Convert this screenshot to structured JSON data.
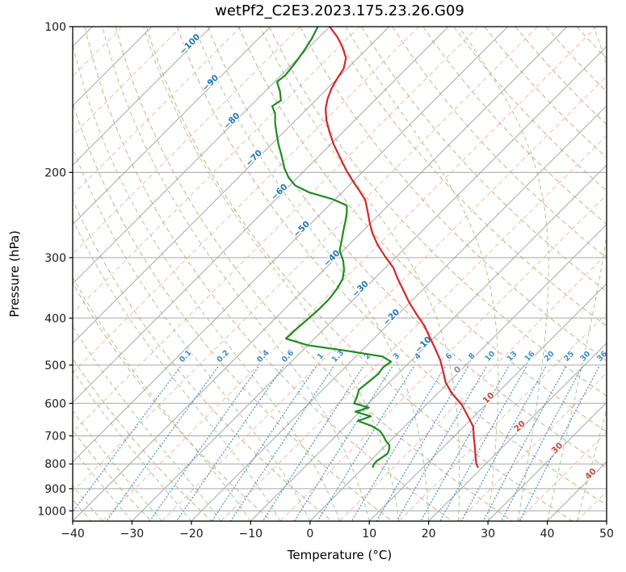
{
  "title": "wetPf2_C2E3.2023.175.23.26.G09",
  "x_axis": {
    "label": "Temperature (°C)",
    "tick_values": [
      -40,
      -30,
      -20,
      -10,
      0,
      10,
      20,
      30,
      40,
      50
    ],
    "tick_labels": [
      "−40",
      "−30",
      "−20",
      "−10",
      "0",
      "10",
      "20",
      "30",
      "40",
      "50"
    ]
  },
  "y_axis": {
    "label": "Pressure (hPa)",
    "tick_values": [
      100,
      200,
      300,
      400,
      500,
      600,
      700,
      800,
      900,
      1000
    ],
    "tick_labels": [
      "100",
      "200",
      "300",
      "400",
      "500",
      "600",
      "700",
      "800",
      "900",
      "1000"
    ]
  },
  "chart_data": {
    "type": "line",
    "diagram": "skew-t-log-p",
    "pressure_range_hPa": [
      100,
      1050
    ],
    "temperature_axis_range_C": [
      -40,
      50
    ],
    "grid": true,
    "series": [
      {
        "name": "temperature",
        "color": "#d62728",
        "points": [
          [
            100,
            -80
          ],
          [
            105,
            -77
          ],
          [
            110,
            -74.5
          ],
          [
            116,
            -72
          ],
          [
            122,
            -70.6
          ],
          [
            128,
            -70
          ],
          [
            134,
            -69.3
          ],
          [
            141,
            -68.2
          ],
          [
            148,
            -66.8
          ],
          [
            156,
            -64.8
          ],
          [
            165,
            -62.3
          ],
          [
            175,
            -59.5
          ],
          [
            186,
            -56.3
          ],
          [
            198,
            -53
          ],
          [
            208,
            -50.2
          ],
          [
            218,
            -47.4
          ],
          [
            228,
            -44.8
          ],
          [
            240,
            -42.6
          ],
          [
            253,
            -40.4
          ],
          [
            267,
            -38
          ],
          [
            282,
            -35.2
          ],
          [
            298,
            -32
          ],
          [
            315,
            -28.6
          ],
          [
            332,
            -26
          ],
          [
            350,
            -23.2
          ],
          [
            370,
            -20.3
          ],
          [
            392,
            -17
          ],
          [
            415,
            -13.6
          ],
          [
            438,
            -10.8
          ],
          [
            462,
            -8
          ],
          [
            488,
            -5.2
          ],
          [
            515,
            -2.8
          ],
          [
            543,
            -0.5
          ],
          [
            573,
            2.5
          ],
          [
            604,
            6
          ],
          [
            636,
            8.8
          ],
          [
            670,
            11.6
          ],
          [
            705,
            13.5
          ],
          [
            740,
            15.4
          ],
          [
            776,
            17.2
          ],
          [
            800,
            18.4
          ],
          [
            812,
            19.2
          ]
        ]
      },
      {
        "name": "dewpoint",
        "color": "#1e8b1e",
        "points": [
          [
            100,
            -82
          ],
          [
            106,
            -81
          ],
          [
            112,
            -80.3
          ],
          [
            119,
            -79.7
          ],
          [
            126,
            -79.3
          ],
          [
            130,
            -79.6
          ],
          [
            136,
            -77.5
          ],
          [
            142,
            -75.8
          ],
          [
            146,
            -76.3
          ],
          [
            151,
            -74.6
          ],
          [
            158,
            -73
          ],
          [
            166,
            -71
          ],
          [
            175,
            -68.8
          ],
          [
            185,
            -66.3
          ],
          [
            196,
            -63.8
          ],
          [
            205,
            -61.5
          ],
          [
            213,
            -59
          ],
          [
            220,
            -55.5
          ],
          [
            227,
            -50.5
          ],
          [
            234,
            -47
          ],
          [
            242,
            -45.8
          ],
          [
            252,
            -44.6
          ],
          [
            263,
            -43.4
          ],
          [
            276,
            -42
          ],
          [
            290,
            -40.6
          ],
          [
            305,
            -38.2
          ],
          [
            318,
            -36.6
          ],
          [
            332,
            -35.3
          ],
          [
            348,
            -34.6
          ],
          [
            365,
            -34.2
          ],
          [
            383,
            -34.2
          ],
          [
            402,
            -34.4
          ],
          [
            422,
            -34.7
          ],
          [
            441,
            -34.8
          ],
          [
            455,
            -30
          ],
          [
            468,
            -22
          ],
          [
            480,
            -15.5
          ],
          [
            492,
            -13.2
          ],
          [
            505,
            -13.6
          ],
          [
            522,
            -13.3
          ],
          [
            542,
            -13.6
          ],
          [
            562,
            -13.9
          ],
          [
            582,
            -13
          ],
          [
            600,
            -12.4
          ],
          [
            612,
            -9.2
          ],
          [
            624,
            -10.8
          ],
          [
            638,
            -7.4
          ],
          [
            652,
            -8.8
          ],
          [
            668,
            -5.6
          ],
          [
            684,
            -3.4
          ],
          [
            700,
            -2
          ],
          [
            716,
            -0.8
          ],
          [
            732,
            0.6
          ],
          [
            748,
            1.3
          ],
          [
            762,
            1.7
          ],
          [
            776,
            1.4
          ],
          [
            790,
            1.1
          ],
          [
            802,
            1.2
          ],
          [
            812,
            1.5
          ]
        ]
      }
    ],
    "isotherm_labels": {
      "cold_values": [
        -100,
        -90,
        -80,
        -70,
        -60,
        -50,
        -40,
        -30,
        -20,
        -10
      ],
      "zero_value": 0,
      "warm_values": [
        10,
        20,
        30,
        40
      ]
    },
    "mixing_ratio_labels_g_kg": [
      "0.1",
      "0.2",
      "0.4",
      "0.6",
      "1",
      "1.3",
      "2",
      "3",
      "4",
      "6",
      "8",
      "10",
      "13",
      "16",
      "20",
      "25",
      "30",
      "36"
    ],
    "background_lines": {
      "isotherm_step_C": 10,
      "minor_isotherm_offset_C": 5,
      "dry_adiabats_theta_K": {
        "from": 233,
        "to": 533,
        "step": 10
      },
      "moist_adiabats_start_C": {
        "from": -40,
        "to": 50,
        "step": 5
      },
      "mixing_lines_top_hPa": 505
    }
  },
  "colors": {
    "temperature": "#d62728",
    "dewpoint": "#1e8b1e",
    "isotherm_major": "#a6a6a6",
    "isotherm_minor": "#f2a892",
    "pressure_grid": "#a6a6a6",
    "dry_adiabat": "#bfa274",
    "moist_adiabat": "#8fbc74",
    "mixing_line": "#3e8ec4",
    "cold_label": "#1f77b4",
    "zero_label": "#8a8a8a",
    "warm_label": "#c64a3c",
    "frame": "#000000",
    "tick_text": "#1a1a1a"
  }
}
